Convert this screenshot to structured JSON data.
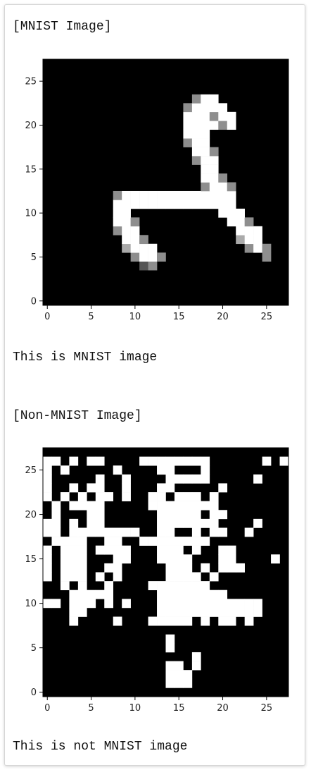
{
  "output": {
    "mnist_header": "[MNIST Image]",
    "mnist_result": "This is MNIST image",
    "non_mnist_header": "[Non-MNIST Image]",
    "non_mnist_result": "This is not MNIST image"
  },
  "chart_data": [
    {
      "type": "heatmap",
      "title": "",
      "xlabel": "",
      "ylabel": "",
      "colormap": "gray",
      "xlim": [
        -0.5,
        27.5
      ],
      "ylim": [
        27.5,
        -0.5
      ],
      "x_ticks": [
        0,
        5,
        10,
        15,
        20,
        25
      ],
      "y_ticks": [
        0,
        5,
        10,
        15,
        20,
        25
      ],
      "x_tick_labels": [
        "0",
        "5",
        "10",
        "15",
        "20",
        "25"
      ],
      "y_tick_labels": [
        "0",
        "5",
        "10",
        "15",
        "20",
        "25"
      ],
      "grid": false,
      "rows": [
        "0000000000000000000000000000",
        "0000000000000000000000000000",
        "0000000000000000000000000000",
        "0000000000000000000000000000",
        "0000000000000000000000000000",
        "0000000000035000000000000000",
        "0000000000599500000000000500",
        "0000000006999000000000059500",
        "0000000009950000000000699000",
        "0000000059900000000000999000",
        "0000000099500000000009950000",
        "0000000099000000000099900000",
        "0000000099999999999999000000",
        "0000000059999999999999000000",
        "0000000000000000005995000000",
        "0000000000000000009950000000",
        "0000000000000000009900000000",
        "0000000000000000059900000000",
        "0000000000000000099500000000",
        "0000000000000000599000000000",
        "0000000000000000999000000000",
        "0000000000000000999959000000",
        "0000000000000000999599000000",
        "0000000000000000599990000000",
        "0000000000000000059900000000",
        "0000000000000000000000000000",
        "0000000000000000000000000000",
        "0000000000000000000000000000"
      ]
    },
    {
      "type": "heatmap",
      "title": "",
      "xlabel": "",
      "ylabel": "",
      "colormap": "gray",
      "xlim": [
        -0.5,
        27.5
      ],
      "ylim": [
        27.5,
        -0.5
      ],
      "x_ticks": [
        0,
        5,
        10,
        15,
        20,
        25
      ],
      "y_ticks": [
        0,
        5,
        10,
        15,
        20,
        25
      ],
      "x_tick_labels": [
        "0",
        "5",
        "10",
        "15",
        "20",
        "25"
      ],
      "y_tick_labels": [
        "0",
        "5",
        "10",
        "15",
        "20",
        "25"
      ],
      "grid": false,
      "rows": [
        "0000000000000000000000000000",
        "0000000000000000000000000000",
        "0000000000000011100000000000",
        "0000000000000011100000000000",
        "0000000000000011010000000000",
        "0000000000000000010000000000",
        "0000000000000010000000000000",
        "0000000000000010000000000000",
        "0000000000000000000000000000",
        "0001000010001111101011010000",
        "0001100000000111111111111000",
        "1101110101000111111111111000",
        "0001111100000111111110000000",
        "0010100100001111111000000000",
        "1011101010000011110100000000",
        "1011100110000011101011100000",
        "1011100011000111100011000010",
        "1011101111000111010011000000",
        "0111100110011111111000000000",
        "1101111111100110010110010000",
        "1101011000000111111100001000",
        "0100011000000111110110000000",
        "0101111000001111111100000000",
        "1010101101001101110100000000",
        "1001011001000110000010000000",
        "1000001001000011111000001000",
        "1010000010000110001000000000",
        "1101011000011111111000000101"
      ]
    }
  ]
}
